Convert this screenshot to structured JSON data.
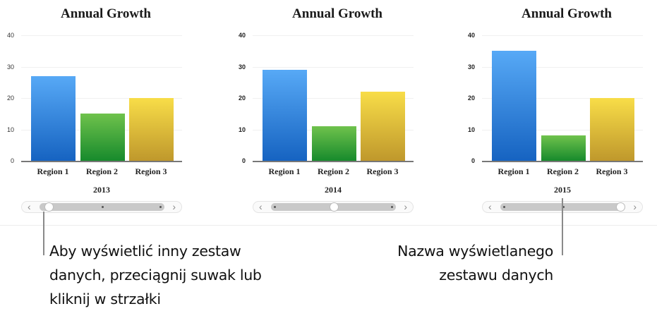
{
  "colors": {
    "region1": "#3b8ee0",
    "region2": "#3ea83a",
    "region3": "#e0bf3a"
  },
  "charts": [
    {
      "title": "Annual Growth",
      "dataset": "2013",
      "ticks": [
        "40",
        "30",
        "20",
        "10",
        "0"
      ],
      "categories": [
        "Region 1",
        "Region 2",
        "Region 3"
      ],
      "values": [
        27,
        15,
        20
      ],
      "slider_position": 0
    },
    {
      "title": "Annual Growth",
      "dataset": "2014",
      "ticks": [
        "40",
        "30",
        "20",
        "10",
        "0"
      ],
      "categories": [
        "Region 1",
        "Region 2",
        "Region 3"
      ],
      "values": [
        29,
        11,
        22
      ],
      "slider_position": 1
    },
    {
      "title": "Annual Growth",
      "dataset": "2015",
      "ticks": [
        "40",
        "30",
        "20",
        "10",
        "0"
      ],
      "categories": [
        "Region 1",
        "Region 2",
        "Region 3"
      ],
      "values": [
        35,
        8,
        20
      ],
      "slider_position": 2
    }
  ],
  "slider": {
    "prev_icon": "‹",
    "next_icon": "›"
  },
  "callouts": {
    "left": [
      "Aby wyświetlić inny zestaw",
      "danych, przeciągnij suwak lub",
      "kliknij w strzałki"
    ],
    "right": [
      "Nazwa wyświetlanego",
      "zestawu danych"
    ]
  },
  "chart_data": [
    {
      "type": "bar",
      "title": "Annual Growth",
      "xlabel": "2013",
      "ylabel": "",
      "categories": [
        "Region 1",
        "Region 2",
        "Region 3"
      ],
      "values": [
        27,
        15,
        20
      ],
      "ylim": [
        0,
        40
      ],
      "yticks": [
        0,
        10,
        20,
        30,
        40
      ],
      "grid": true,
      "legend": null
    },
    {
      "type": "bar",
      "title": "Annual Growth",
      "xlabel": "2014",
      "ylabel": "",
      "categories": [
        "Region 1",
        "Region 2",
        "Region 3"
      ],
      "values": [
        29,
        11,
        22
      ],
      "ylim": [
        0,
        40
      ],
      "yticks": [
        0,
        10,
        20,
        30,
        40
      ],
      "grid": true,
      "legend": null
    },
    {
      "type": "bar",
      "title": "Annual Growth",
      "xlabel": "2015",
      "ylabel": "",
      "categories": [
        "Region 1",
        "Region 2",
        "Region 3"
      ],
      "values": [
        35,
        8,
        20
      ],
      "ylim": [
        0,
        40
      ],
      "yticks": [
        0,
        10,
        20,
        30,
        40
      ],
      "grid": true,
      "legend": null
    }
  ]
}
